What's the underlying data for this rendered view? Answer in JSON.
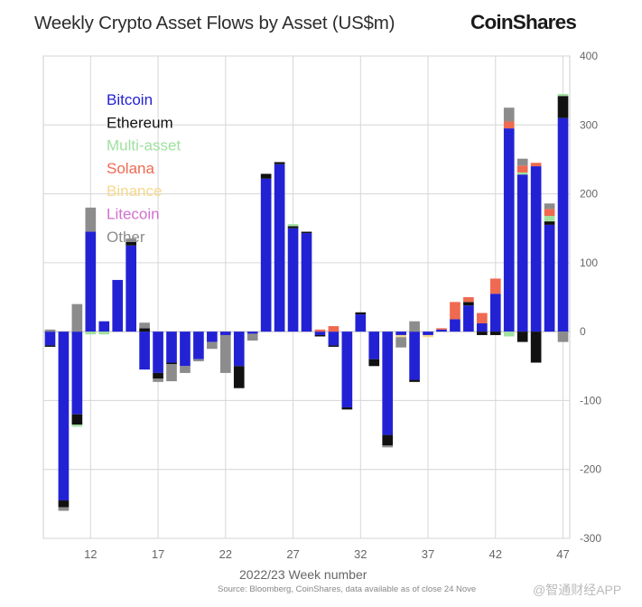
{
  "header": {
    "title": "Weekly Crypto Asset Flows by Asset (US$m)",
    "brand": "CoinShares"
  },
  "footer": {
    "xlabel": "2022/23 Week number",
    "source": "Source: Bloomberg, CoinShares, data available as of close 24 Nove",
    "watermark": "@智通财经APP"
  },
  "chart_data": {
    "type": "bar",
    "stacked": true,
    "title": "Weekly Crypto Asset Flows by Asset (US$m)",
    "xlabel": "2022/23 Week number",
    "ylabel": "",
    "ylim": [
      -300,
      400
    ],
    "yticks": [
      -300,
      -200,
      -100,
      0,
      100,
      200,
      300,
      400
    ],
    "y_axis_position": "right",
    "grid": true,
    "legend_position": "top-left",
    "categories": [
      9,
      10,
      11,
      12,
      13,
      14,
      15,
      16,
      17,
      18,
      19,
      20,
      21,
      22,
      23,
      24,
      25,
      26,
      27,
      28,
      29,
      30,
      31,
      32,
      33,
      34,
      35,
      36,
      37,
      38,
      39,
      40,
      41,
      42,
      43,
      44,
      45,
      46,
      47
    ],
    "xticks": [
      12,
      17,
      22,
      27,
      32,
      37,
      42,
      47
    ],
    "series": [
      {
        "name": "Bitcoin",
        "color": "#2222d4",
        "values": [
          -20,
          -245,
          -120,
          145,
          15,
          75,
          125,
          -55,
          -60,
          -45,
          -50,
          -40,
          -15,
          -5,
          -50,
          -3,
          222,
          243,
          150,
          143,
          -5,
          -20,
          -110,
          25,
          -40,
          -150,
          -5,
          -70,
          -5,
          3,
          18,
          38,
          12,
          55,
          295,
          228,
          240,
          155,
          310
        ]
      },
      {
        "name": "Ethereum",
        "color": "#111111",
        "values": [
          -2,
          -10,
          -15,
          0,
          0,
          0,
          5,
          5,
          -8,
          -2,
          0,
          0,
          0,
          0,
          -32,
          0,
          7,
          3,
          3,
          2,
          -2,
          -2,
          -3,
          3,
          -10,
          -15,
          0,
          -3,
          0,
          0,
          0,
          5,
          -5,
          -5,
          0,
          -15,
          -45,
          5,
          32
        ]
      },
      {
        "name": "Multi-asset",
        "color": "#a0e0a0",
        "values": [
          0,
          0,
          -3,
          -4,
          -4,
          0,
          0,
          0,
          0,
          0,
          0,
          0,
          0,
          0,
          0,
          0,
          0,
          0,
          3,
          0,
          0,
          0,
          0,
          0,
          0,
          0,
          0,
          0,
          0,
          0,
          0,
          0,
          0,
          0,
          -7,
          3,
          0,
          8,
          3
        ]
      },
      {
        "name": "Solana",
        "color": "#ef6a50",
        "values": [
          0,
          0,
          0,
          0,
          0,
          0,
          0,
          0,
          0,
          0,
          0,
          0,
          0,
          0,
          0,
          0,
          0,
          0,
          0,
          0,
          3,
          8,
          0,
          0,
          0,
          0,
          0,
          0,
          0,
          2,
          25,
          7,
          15,
          22,
          10,
          10,
          5,
          10,
          0
        ]
      },
      {
        "name": "Binance",
        "color": "#f5d98c",
        "values": [
          0,
          0,
          0,
          0,
          0,
          0,
          0,
          0,
          0,
          0,
          0,
          0,
          0,
          0,
          0,
          0,
          0,
          0,
          0,
          0,
          0,
          0,
          0,
          0,
          0,
          0,
          -3,
          0,
          -3,
          0,
          0,
          0,
          0,
          0,
          0,
          0,
          0,
          0,
          0
        ]
      },
      {
        "name": "Litecoin",
        "color": "#d070d0",
        "values": [
          0,
          0,
          0,
          0,
          0,
          0,
          0,
          0,
          0,
          0,
          0,
          0,
          0,
          0,
          0,
          0,
          0,
          0,
          0,
          0,
          0,
          0,
          0,
          0,
          0,
          0,
          0,
          0,
          0,
          0,
          0,
          0,
          0,
          0,
          0,
          0,
          0,
          0,
          0
        ]
      },
      {
        "name": "Other",
        "color": "#8c8c8c",
        "values": [
          3,
          -5,
          40,
          35,
          0,
          0,
          5,
          8,
          -5,
          -25,
          -10,
          -3,
          -10,
          -55,
          0,
          -10,
          0,
          0,
          0,
          0,
          0,
          0,
          0,
          0,
          0,
          -3,
          -15,
          15,
          0,
          0,
          0,
          0,
          0,
          0,
          20,
          10,
          0,
          8,
          -15
        ]
      }
    ]
  }
}
